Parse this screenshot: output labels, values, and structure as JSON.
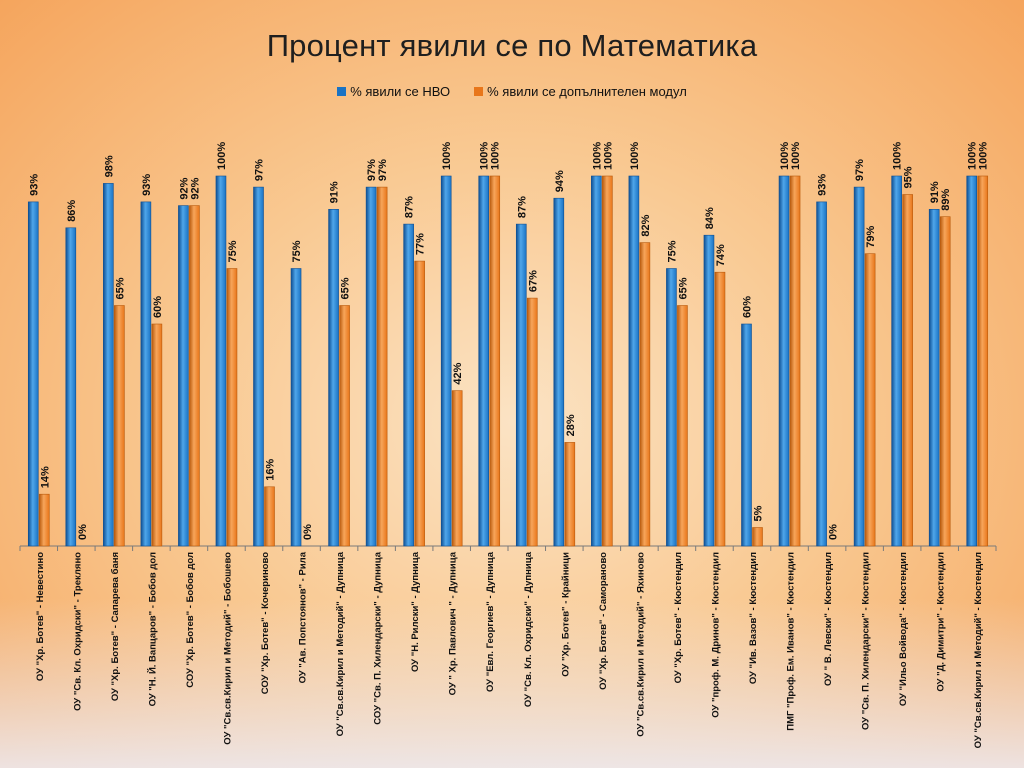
{
  "colors": {
    "series1": "#1a73c4",
    "series1_light": "#4fa6ea",
    "series1_dark": "#0e4f93",
    "series2": "#e8761a",
    "series2_light": "#f7a55a",
    "series2_dark": "#b85a0d",
    "axis": "#7a7a7a"
  },
  "chart_data": {
    "type": "bar",
    "title": "Процент явили се по  Математика",
    "xlabel": "",
    "ylabel": "",
    "ylim": [
      0,
      100
    ],
    "grid": false,
    "legend_position": "top-center",
    "categories": [
      "ОУ \"Хр. Ботев\" - Невестино",
      "ОУ \"Св. Кл. Охридски\" - Трекляно",
      "ОУ \"Хр. Ботев\" - Сапарева баня",
      "ОУ \"Н. Й. Вапцаров\" - Бобов дол",
      "СОУ \"Хр. Ботев\" - Бобов дол",
      "ОУ \"Св.св.Кирил и Методий\" - Бобошево",
      "СОУ \"Хр. Ботев\" - Кочериново",
      "ОУ \"Ав. Попстоянов\" - Рила",
      "ОУ \"Св.св.Кирил и Методий\" - Дупница",
      "СОУ \"Св. П. Хилендарски\" - Дупница",
      "ОУ \"Н. Рилски\" - Дупница",
      "ОУ \" Хр. Павлович \" - Дупница",
      "ОУ \"Евл. Георгиев\" - Дупница",
      "ОУ \"Св. Кл. Охридски\" - Дупница",
      "ОУ \"Хр. Ботев\" - Крайници",
      "ОУ \"Хр. Ботев\" - Самораново",
      "ОУ \"Св.св.Кирил и Методий\" - Яхиново",
      "ОУ \"Хр. Ботев\" - Кюстендил",
      "ОУ \"проф. М. Дринов\" - Кюстендил",
      "ОУ \"Ив. Вазов\" - Кюстендил",
      "ПМГ \"Проф. Ем. Иванов\" - Кюстендил",
      "ОУ \" В. Левски\" - Кюстендил",
      "ОУ \"Св. П. Хилендарски\" - Кюстендил",
      "ОУ \"Ильо Войвода\" - Кюстендил",
      "ОУ \"Д. Димитри\" - Кюстендил",
      "ОУ \"Св.св.Кирил и Методий\" - Кюстендил"
    ],
    "series": [
      {
        "name": "% явили се НВО",
        "values": [
          93,
          86,
          98,
          93,
          92,
          100,
          97,
          75,
          91,
          97,
          87,
          100,
          100,
          87,
          94,
          100,
          100,
          75,
          84,
          60,
          100,
          93,
          97,
          100,
          91,
          100
        ],
        "labels": [
          "93%",
          "86%",
          "98%",
          "93%",
          "92%",
          "100%",
          "97%",
          "75%",
          "91%",
          "97%",
          "87%",
          "100%",
          "100%",
          "87%",
          "94%",
          "100%",
          "100%",
          "75%",
          "84%",
          "60%",
          "100%",
          "93%",
          "97%",
          "100%",
          "91%",
          "100%"
        ]
      },
      {
        "name": "% явили се допълнителен модул",
        "values": [
          14,
          0,
          65,
          60,
          92,
          75,
          16,
          0,
          65,
          97,
          77,
          42,
          100,
          67,
          28,
          100,
          82,
          65,
          74,
          5,
          100,
          0,
          79,
          95,
          89,
          100
        ],
        "labels": [
          "14%",
          "0%",
          "65%",
          "60%",
          "92%",
          "75%",
          "16%",
          "0%",
          "65%",
          "97%",
          "77%",
          "42%",
          "100%",
          "67%",
          "28%",
          "100%",
          "82%",
          "65%",
          "74%",
          "5%",
          "100%",
          "0%",
          "79%",
          "95%",
          "89%",
          "100%"
        ]
      }
    ]
  }
}
